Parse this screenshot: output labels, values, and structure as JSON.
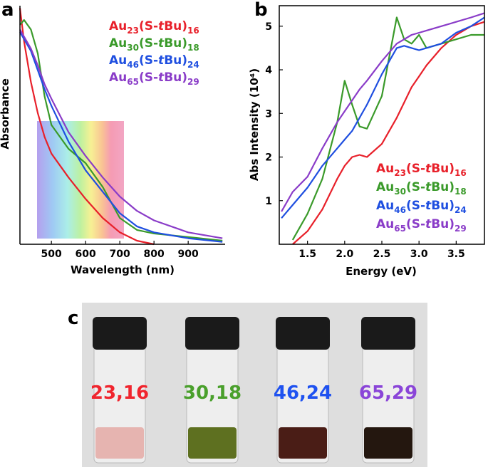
{
  "panel_labels": [
    "a",
    "b",
    "c"
  ],
  "chart_data": [
    {
      "type": "line",
      "x_label": "Wavelength (nm)",
      "y_label": "Absorbance",
      "x": [
        408,
        420,
        440,
        460,
        480,
        500,
        550,
        600,
        650,
        700,
        750,
        800,
        900,
        1000
      ],
      "xlim": [
        408,
        1008
      ],
      "xticks": [
        500,
        600,
        700,
        800,
        900
      ],
      "ylim": [
        0,
        1
      ],
      "series": [
        {
          "name": "Au23(S-tBu)16",
          "color": "#e8202a",
          "values": [
            0.99,
            0.85,
            0.68,
            0.55,
            0.45,
            0.38,
            0.28,
            0.19,
            0.11,
            0.05,
            0.015,
            0,
            null,
            null
          ]
        },
        {
          "name": "Au30(S-tBu)18",
          "color": "#3a9a2a",
          "values": [
            0.92,
            0.94,
            0.9,
            0.8,
            0.62,
            0.5,
            0.4,
            0.34,
            0.24,
            0.11,
            0.06,
            0.045,
            0.03,
            0.015
          ]
        },
        {
          "name": "Au46(S-tBu)24",
          "color": "#1f4fe0",
          "values": [
            0.89,
            0.86,
            0.81,
            0.73,
            0.65,
            0.58,
            0.43,
            0.31,
            0.22,
            0.13,
            0.075,
            0.05,
            0.025,
            0.01
          ]
        },
        {
          "name": "Au65(S-tBu)29",
          "color": "#8a3cc8",
          "values": [
            0.9,
            0.87,
            0.82,
            0.75,
            0.67,
            0.61,
            0.47,
            0.37,
            0.28,
            0.2,
            0.14,
            0.1,
            0.05,
            0.025
          ]
        }
      ]
    },
    {
      "type": "line",
      "x_label": "Energy (eV)",
      "y_label": "Abs Intensity (10⁴)",
      "x": [
        1.15,
        1.3,
        1.5,
        1.7,
        1.9,
        2.0,
        2.1,
        2.2,
        2.3,
        2.5,
        2.7,
        2.8,
        2.9,
        3.0,
        3.1,
        3.3,
        3.5,
        3.7,
        3.88
      ],
      "xlim": [
        1.12,
        3.88
      ],
      "xticks": [
        1.5,
        {
          "value": 2,
          "label": "2.0"
        },
        2.5,
        {
          "value": 3,
          "label": "3.0"
        },
        3.5
      ],
      "ylim": [
        0,
        5.47
      ],
      "yticks": [
        1,
        2,
        3,
        4,
        5
      ],
      "series": [
        {
          "name": "Au23(S-tBu)16",
          "color": "#e8202a",
          "values": [
            null,
            0,
            0.3,
            0.8,
            1.5,
            1.8,
            2.0,
            2.05,
            2.0,
            2.3,
            2.9,
            3.25,
            3.6,
            3.85,
            4.1,
            4.5,
            4.8,
            5.0,
            5.1
          ]
        },
        {
          "name": "Au30(S-tBu)18",
          "color": "#3a9a2a",
          "values": [
            null,
            0.1,
            0.7,
            1.5,
            2.8,
            3.75,
            3.2,
            2.7,
            2.65,
            3.4,
            5.2,
            4.7,
            4.6,
            4.8,
            4.5,
            4.6,
            4.7,
            4.8,
            4.8
          ]
        },
        {
          "name": "Au46(S-tBu)24",
          "color": "#1f4fe0",
          "values": [
            0.6,
            0.9,
            1.3,
            1.8,
            2.2,
            2.4,
            2.6,
            2.9,
            3.2,
            3.9,
            4.5,
            4.55,
            4.5,
            4.45,
            4.5,
            4.6,
            4.85,
            5.0,
            5.2
          ]
        },
        {
          "name": "Au65(S-tBu)29",
          "color": "#8a3cc8",
          "values": [
            0.75,
            1.2,
            1.55,
            2.2,
            2.8,
            3.05,
            3.3,
            3.55,
            3.75,
            4.2,
            4.6,
            4.7,
            4.8,
            4.85,
            4.9,
            5.0,
            5.1,
            5.2,
            5.3
          ]
        }
      ]
    }
  ],
  "photo": {
    "labels": [
      {
        "text": "23,16",
        "color": "#f0252e"
      },
      {
        "text": "30,18",
        "color": "#4aa02c"
      },
      {
        "text": "46,24",
        "color": "#1f52f0"
      },
      {
        "text": "65,29",
        "color": "#8a45d8"
      }
    ]
  }
}
